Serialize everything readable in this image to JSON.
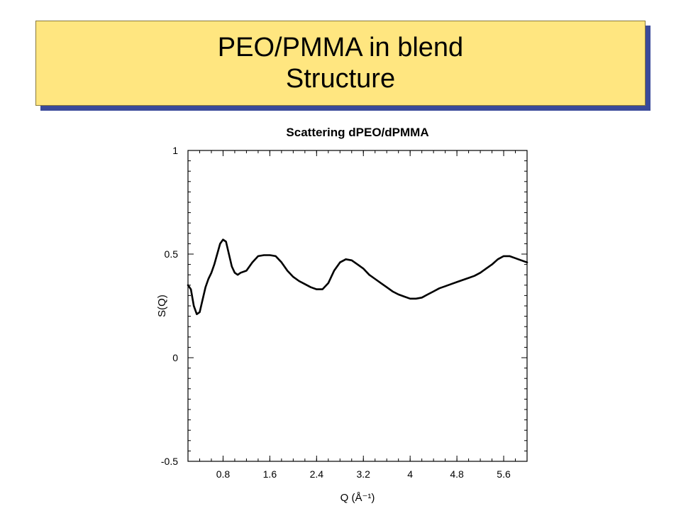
{
  "slide": {
    "title_line1": "PEO/PMMA in blend",
    "title_line2": "Structure"
  },
  "chart_data": {
    "type": "line",
    "title": "Scattering dPEO/dPMMA",
    "xlabel": "Q (Å⁻¹)",
    "ylabel": "S(Q)",
    "xlim": [
      0.2,
      6.0
    ],
    "ylim": [
      -0.5,
      1.0
    ],
    "x_ticks": [
      "0.8",
      "1.6",
      "2.4",
      "3.2",
      "4",
      "4.8",
      "5.6"
    ],
    "x_tick_values": [
      0.8,
      1.6,
      2.4,
      3.2,
      4.0,
      4.8,
      5.6
    ],
    "y_ticks": [
      "-0.5",
      "0",
      "0.5",
      "1"
    ],
    "y_tick_values": [
      -0.5,
      0,
      0.5,
      1.0
    ],
    "grid": false,
    "series": [
      {
        "x": [
          0.2,
          0.25,
          0.3,
          0.35,
          0.4,
          0.45,
          0.5,
          0.55,
          0.6,
          0.65,
          0.7,
          0.75,
          0.8,
          0.85,
          0.9,
          0.95,
          1.0,
          1.05,
          1.1,
          1.2,
          1.3,
          1.4,
          1.5,
          1.6,
          1.7,
          1.8,
          1.9,
          2.0,
          2.1,
          2.2,
          2.3,
          2.4,
          2.5,
          2.6,
          2.7,
          2.8,
          2.9,
          3.0,
          3.1,
          3.2,
          3.3,
          3.4,
          3.5,
          3.6,
          3.7,
          3.8,
          3.9,
          4.0,
          4.1,
          4.2,
          4.3,
          4.4,
          4.5,
          4.6,
          4.7,
          4.8,
          4.9,
          5.0,
          5.1,
          5.2,
          5.3,
          5.4,
          5.5,
          5.6,
          5.7,
          5.8,
          5.9,
          6.0
        ],
        "y": [
          0.35,
          0.33,
          0.25,
          0.21,
          0.22,
          0.28,
          0.34,
          0.38,
          0.41,
          0.45,
          0.5,
          0.55,
          0.57,
          0.56,
          0.5,
          0.44,
          0.41,
          0.4,
          0.41,
          0.42,
          0.46,
          0.49,
          0.495,
          0.495,
          0.49,
          0.46,
          0.42,
          0.39,
          0.37,
          0.355,
          0.34,
          0.33,
          0.33,
          0.36,
          0.42,
          0.46,
          0.475,
          0.47,
          0.45,
          0.43,
          0.4,
          0.38,
          0.36,
          0.34,
          0.32,
          0.305,
          0.295,
          0.285,
          0.285,
          0.29,
          0.305,
          0.32,
          0.335,
          0.345,
          0.355,
          0.365,
          0.375,
          0.385,
          0.395,
          0.41,
          0.43,
          0.45,
          0.475,
          0.49,
          0.49,
          0.48,
          0.47,
          0.46
        ]
      }
    ]
  }
}
